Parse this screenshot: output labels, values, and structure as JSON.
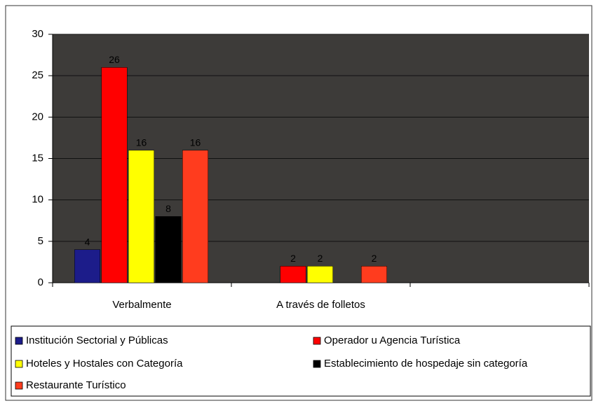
{
  "chart_data": {
    "type": "bar",
    "categories": [
      "Verbalmente",
      "A través  de folletos",
      null
    ],
    "series": [
      {
        "name": "Institución Sectorial y Públicas",
        "color": "#1c1c8a",
        "values": [
          4,
          null,
          null
        ]
      },
      {
        "name": "Operador u Agencia Turística",
        "color": "#ff0000",
        "values": [
          26,
          2,
          null
        ]
      },
      {
        "name": "Hoteles y Hostales con Categoría",
        "color": "#ffff00",
        "values": [
          16,
          2,
          null
        ]
      },
      {
        "name": "Establecimiento de hospedaje sin categoría",
        "color": "#000000",
        "values": [
          8,
          null,
          null
        ]
      },
      {
        "name": "Restaurante Turístico",
        "color": "#ff3c1e",
        "values": [
          16,
          2,
          null
        ]
      }
    ],
    "ylim": [
      0,
      30
    ],
    "yticks": [
      0,
      5,
      10,
      15,
      20,
      25,
      30
    ],
    "grid": true,
    "legend": "bottom"
  }
}
